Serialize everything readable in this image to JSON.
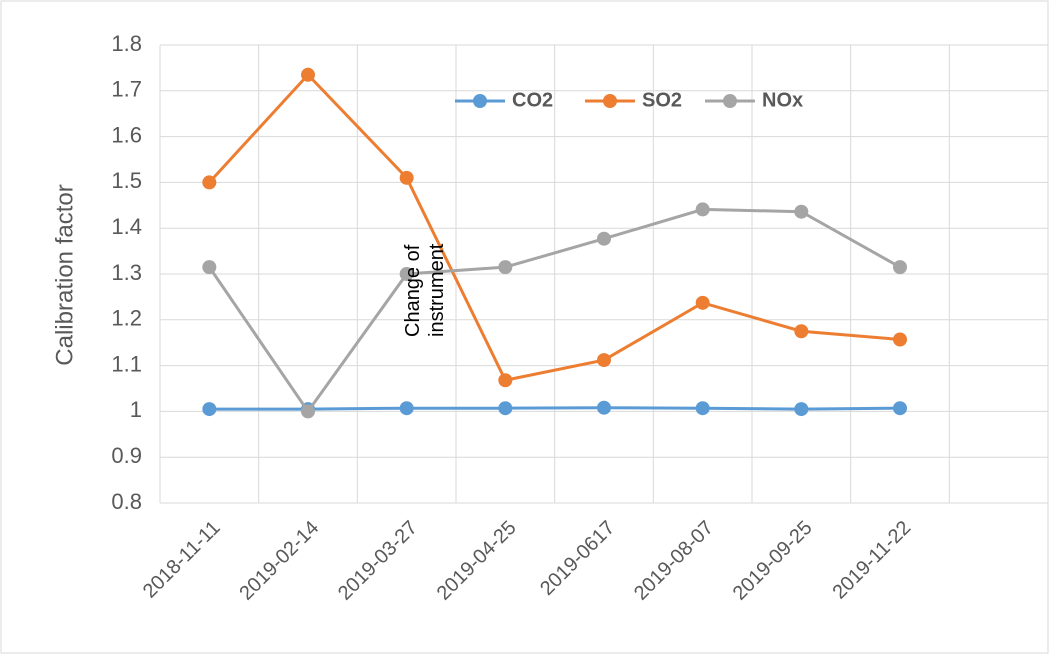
{
  "chart_data": {
    "type": "line",
    "y_label": "Calibration factor",
    "annotation": "Change of instrument",
    "categories": [
      "2018-11-11",
      "2019-02-14",
      "2019-03-27",
      "2019-04-25",
      "2019-0617",
      "2019-08-07",
      "2019-09-25",
      "2019-11-22",
      null
    ],
    "series": [
      {
        "name": "CO2",
        "color": "#5b9bd5",
        "values": [
          1.005,
          1.005,
          1.007,
          1.007,
          1.008,
          1.007,
          1.005,
          1.007,
          null
        ]
      },
      {
        "name": "SO2",
        "color": "#ed7d31",
        "values": [
          1.5,
          1.735,
          1.51,
          1.068,
          1.112,
          1.237,
          1.175,
          1.157,
          null
        ]
      },
      {
        "name": "NOx",
        "color": "#a5a5a5",
        "values": [
          1.315,
          1.0,
          1.3,
          1.315,
          1.377,
          1.441,
          1.436,
          1.315,
          null
        ]
      }
    ],
    "ylim": [
      0.8,
      1.8
    ],
    "yticks": [
      0.8,
      0.9,
      1,
      1.1,
      1.2,
      1.3,
      1.4,
      1.5,
      1.6,
      1.7,
      1.8
    ],
    "grid": true,
    "legend": "top"
  }
}
